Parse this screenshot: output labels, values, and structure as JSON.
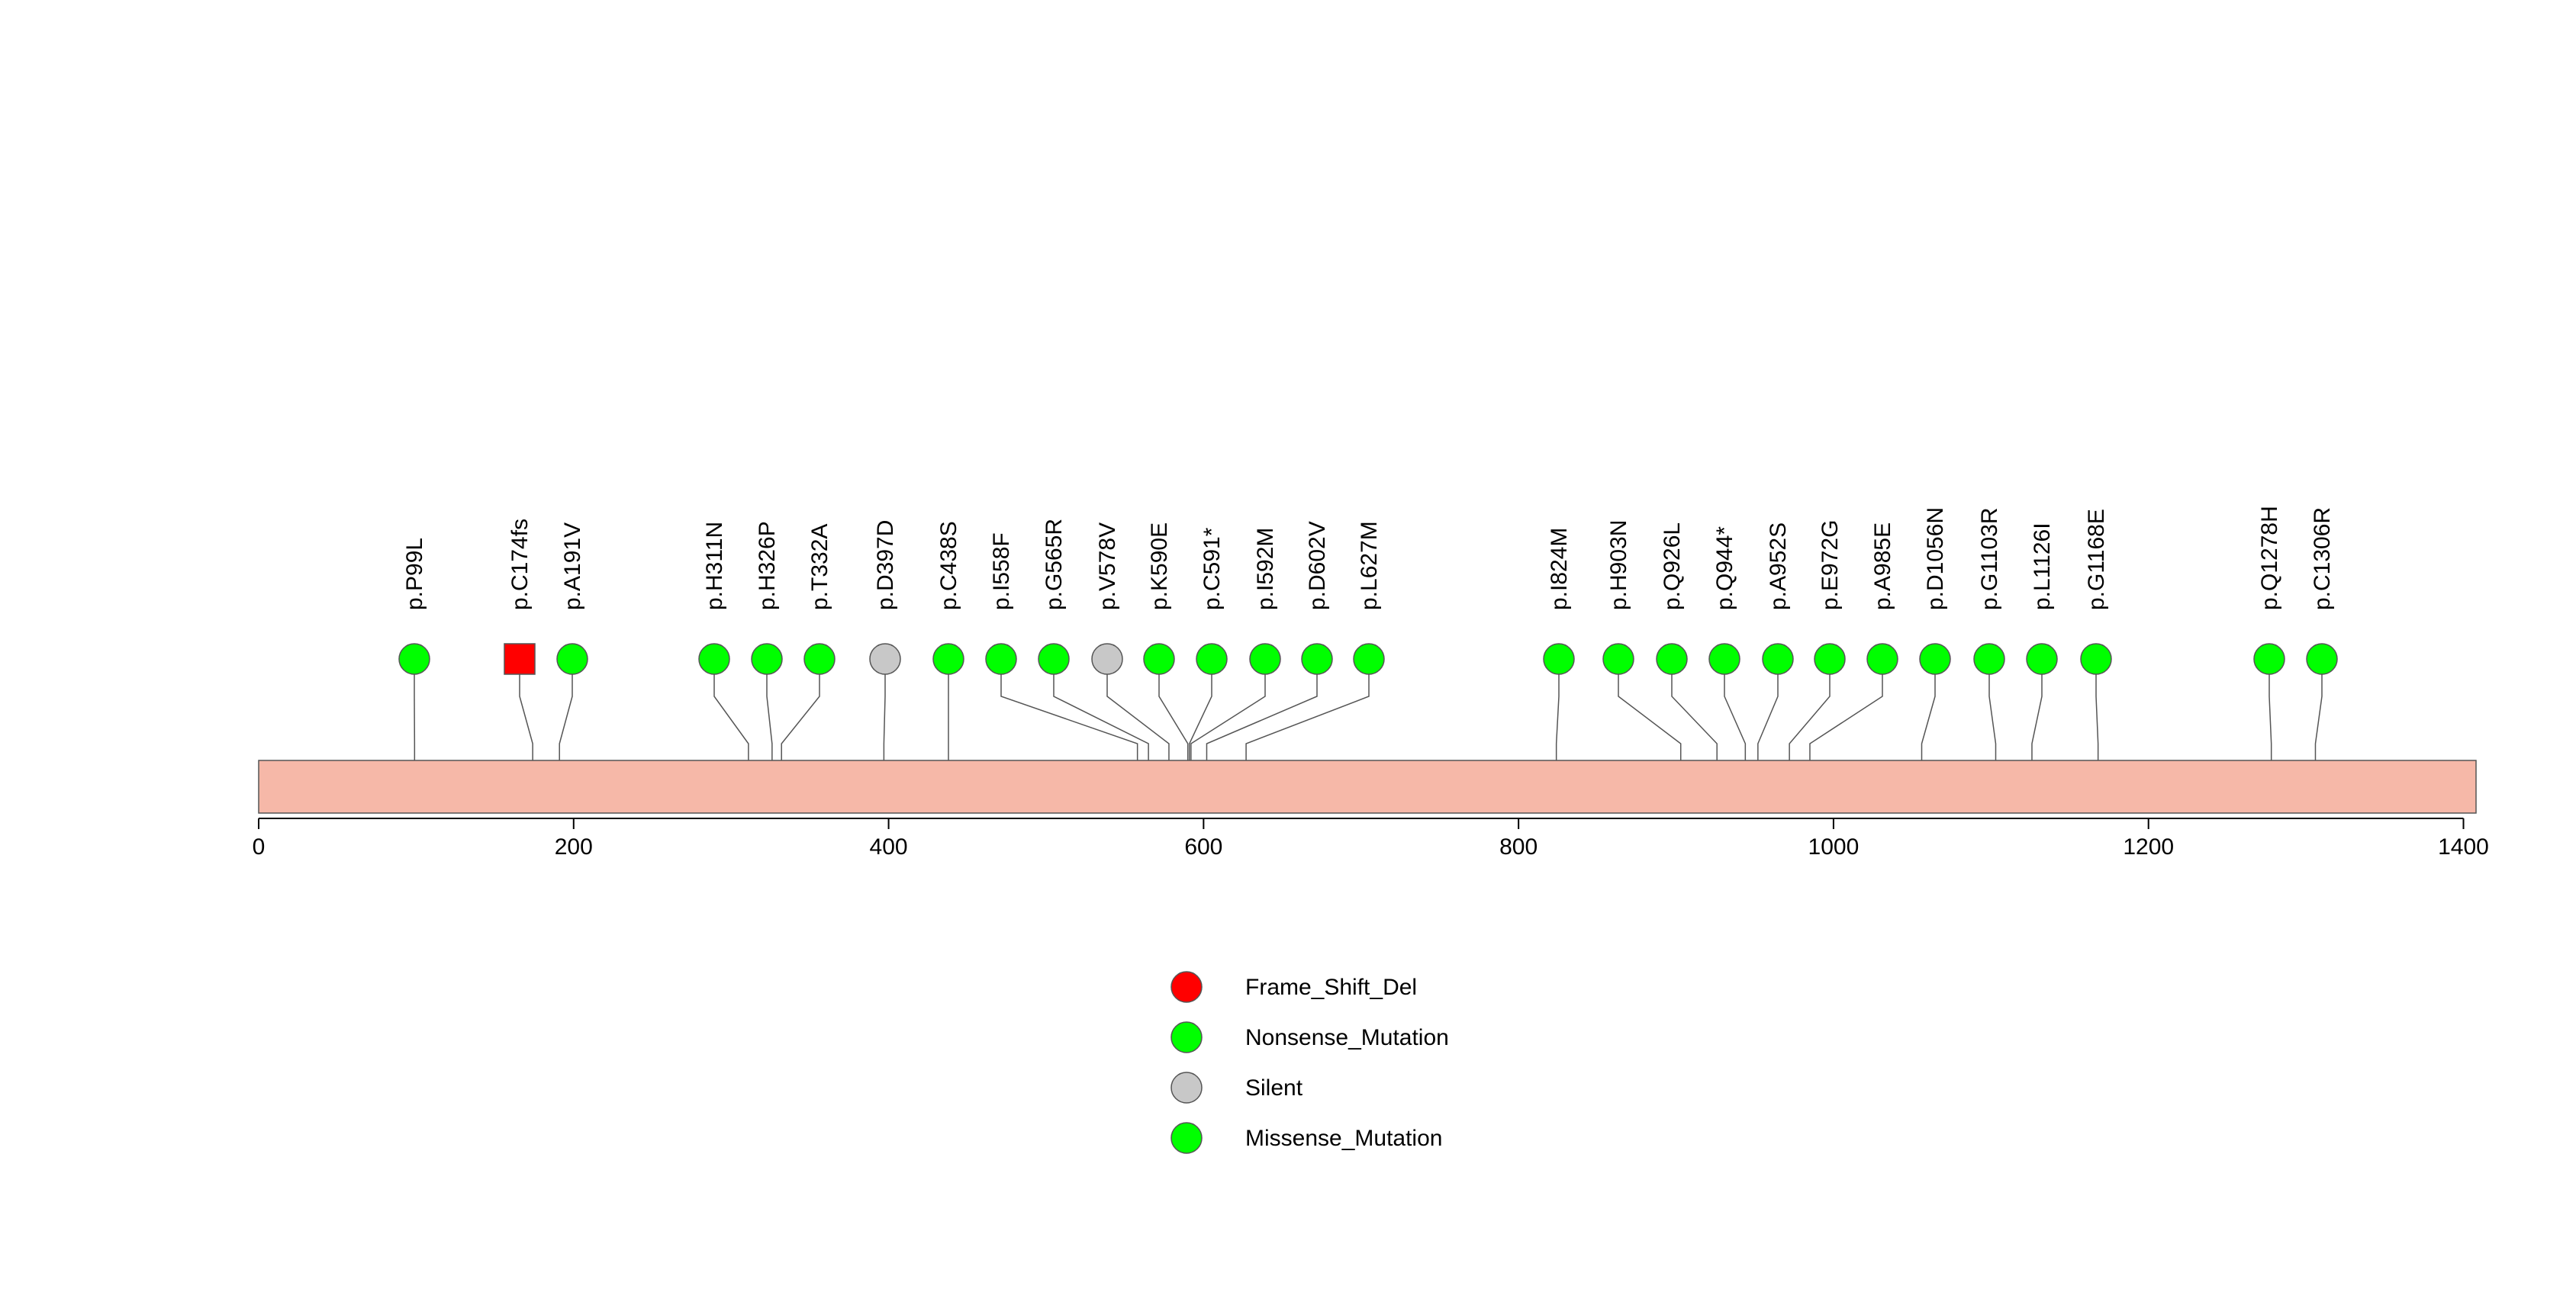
{
  "chart_data": {
    "type": "lollipop",
    "protein_length": 1408,
    "xlim": [
      0,
      1408
    ],
    "xticks": [
      0,
      200,
      400,
      600,
      800,
      1000,
      1200,
      1400
    ],
    "backbone_color": "#f6b8a8",
    "mutations": [
      {
        "label": "p.P99L",
        "position": 99,
        "type": "Missense_Mutation"
      },
      {
        "label": "p.C174fs",
        "position": 174,
        "type": "Frame_Shift_Del"
      },
      {
        "label": "p.A191V",
        "position": 191,
        "type": "Missense_Mutation"
      },
      {
        "label": "p.H311N",
        "position": 311,
        "type": "Missense_Mutation"
      },
      {
        "label": "p.H326P",
        "position": 326,
        "type": "Missense_Mutation"
      },
      {
        "label": "p.T332A",
        "position": 332,
        "type": "Missense_Mutation"
      },
      {
        "label": "p.D397D",
        "position": 397,
        "type": "Silent"
      },
      {
        "label": "p.C438S",
        "position": 438,
        "type": "Missense_Mutation"
      },
      {
        "label": "p.I558F",
        "position": 558,
        "type": "Missense_Mutation"
      },
      {
        "label": "p.G565R",
        "position": 565,
        "type": "Missense_Mutation"
      },
      {
        "label": "p.V578V",
        "position": 578,
        "type": "Silent"
      },
      {
        "label": "p.K590E",
        "position": 590,
        "type": "Missense_Mutation"
      },
      {
        "label": "p.C591*",
        "position": 591,
        "type": "Nonsense_Mutation"
      },
      {
        "label": "p.I592M",
        "position": 592,
        "type": "Missense_Mutation"
      },
      {
        "label": "p.D602V",
        "position": 602,
        "type": "Missense_Mutation"
      },
      {
        "label": "p.L627M",
        "position": 627,
        "type": "Missense_Mutation"
      },
      {
        "label": "p.I824M",
        "position": 824,
        "type": "Missense_Mutation"
      },
      {
        "label": "p.H903N",
        "position": 903,
        "type": "Missense_Mutation"
      },
      {
        "label": "p.Q926L",
        "position": 926,
        "type": "Missense_Mutation"
      },
      {
        "label": "p.Q944*",
        "position": 944,
        "type": "Nonsense_Mutation"
      },
      {
        "label": "p.A952S",
        "position": 952,
        "type": "Missense_Mutation"
      },
      {
        "label": "p.E972G",
        "position": 972,
        "type": "Missense_Mutation"
      },
      {
        "label": "p.A985E",
        "position": 985,
        "type": "Missense_Mutation"
      },
      {
        "label": "p.D1056N",
        "position": 1056,
        "type": "Missense_Mutation"
      },
      {
        "label": "p.G1103R",
        "position": 1103,
        "type": "Missense_Mutation"
      },
      {
        "label": "p.L1126I",
        "position": 1126,
        "type": "Missense_Mutation"
      },
      {
        "label": "p.G1168E",
        "position": 1168,
        "type": "Missense_Mutation"
      },
      {
        "label": "p.Q1278H",
        "position": 1278,
        "type": "Missense_Mutation"
      },
      {
        "label": "p.C1306R",
        "position": 1306,
        "type": "Missense_Mutation"
      }
    ],
    "legend": {
      "placement": "bottom-center",
      "entries": [
        {
          "label": "Frame_Shift_Del",
          "color": "#ff0000"
        },
        {
          "label": "Nonsense_Mutation",
          "color": "#00ff00"
        },
        {
          "label": "Silent",
          "color": "#c8c8c8"
        },
        {
          "label": "Missense_Mutation",
          "color": "#00ff00"
        }
      ]
    },
    "type_colors": {
      "Frame_Shift_Del": "#ff0000",
      "Nonsense_Mutation": "#00ff00",
      "Silent": "#c8c8c8",
      "Missense_Mutation": "#00ff00"
    },
    "type_shapes": {
      "Frame_Shift_Del": "square",
      "Nonsense_Mutation": "circle",
      "Silent": "circle",
      "Missense_Mutation": "circle"
    }
  }
}
